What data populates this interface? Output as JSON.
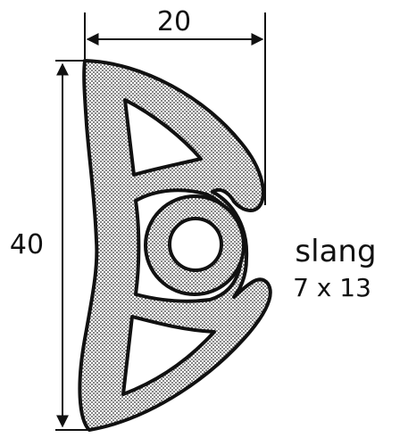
{
  "dimensions": {
    "width_label": "20",
    "height_label": "40"
  },
  "annotation": {
    "line1": "slang",
    "line2": "7 x 13"
  },
  "colors": {
    "ink": "#111111",
    "fill": "#b9b9b9",
    "paper": "#ffffff"
  }
}
